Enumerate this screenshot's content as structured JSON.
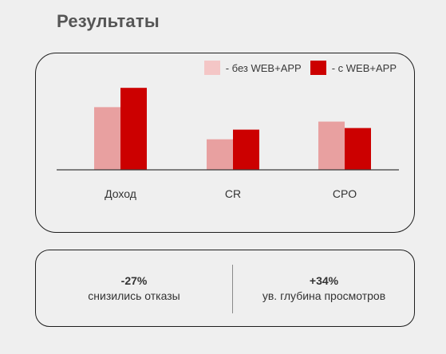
{
  "page": {
    "title": "Результаты"
  },
  "chart_data": {
    "type": "bar",
    "categories": [
      "Доход",
      "CR",
      "CPO"
    ],
    "series": [
      {
        "name": "- без WEB+APP",
        "color": "#e8a0a0",
        "values": [
          78,
          38,
          60
        ]
      },
      {
        "name": "- с WEB+APP",
        "color": "#cc0000",
        "values": [
          102,
          50,
          52
        ]
      }
    ],
    "legend_swatch_colors": [
      "#f4c6c6",
      "#cc0000"
    ],
    "ylim": [
      0,
      125
    ],
    "grid": false,
    "legend_position": "top-right",
    "xlabel": "",
    "ylabel": ""
  },
  "stats": [
    {
      "value": "-27%",
      "label": "снизились отказы"
    },
    {
      "value": "+34%",
      "label": "ув. глубина просмотров"
    }
  ]
}
